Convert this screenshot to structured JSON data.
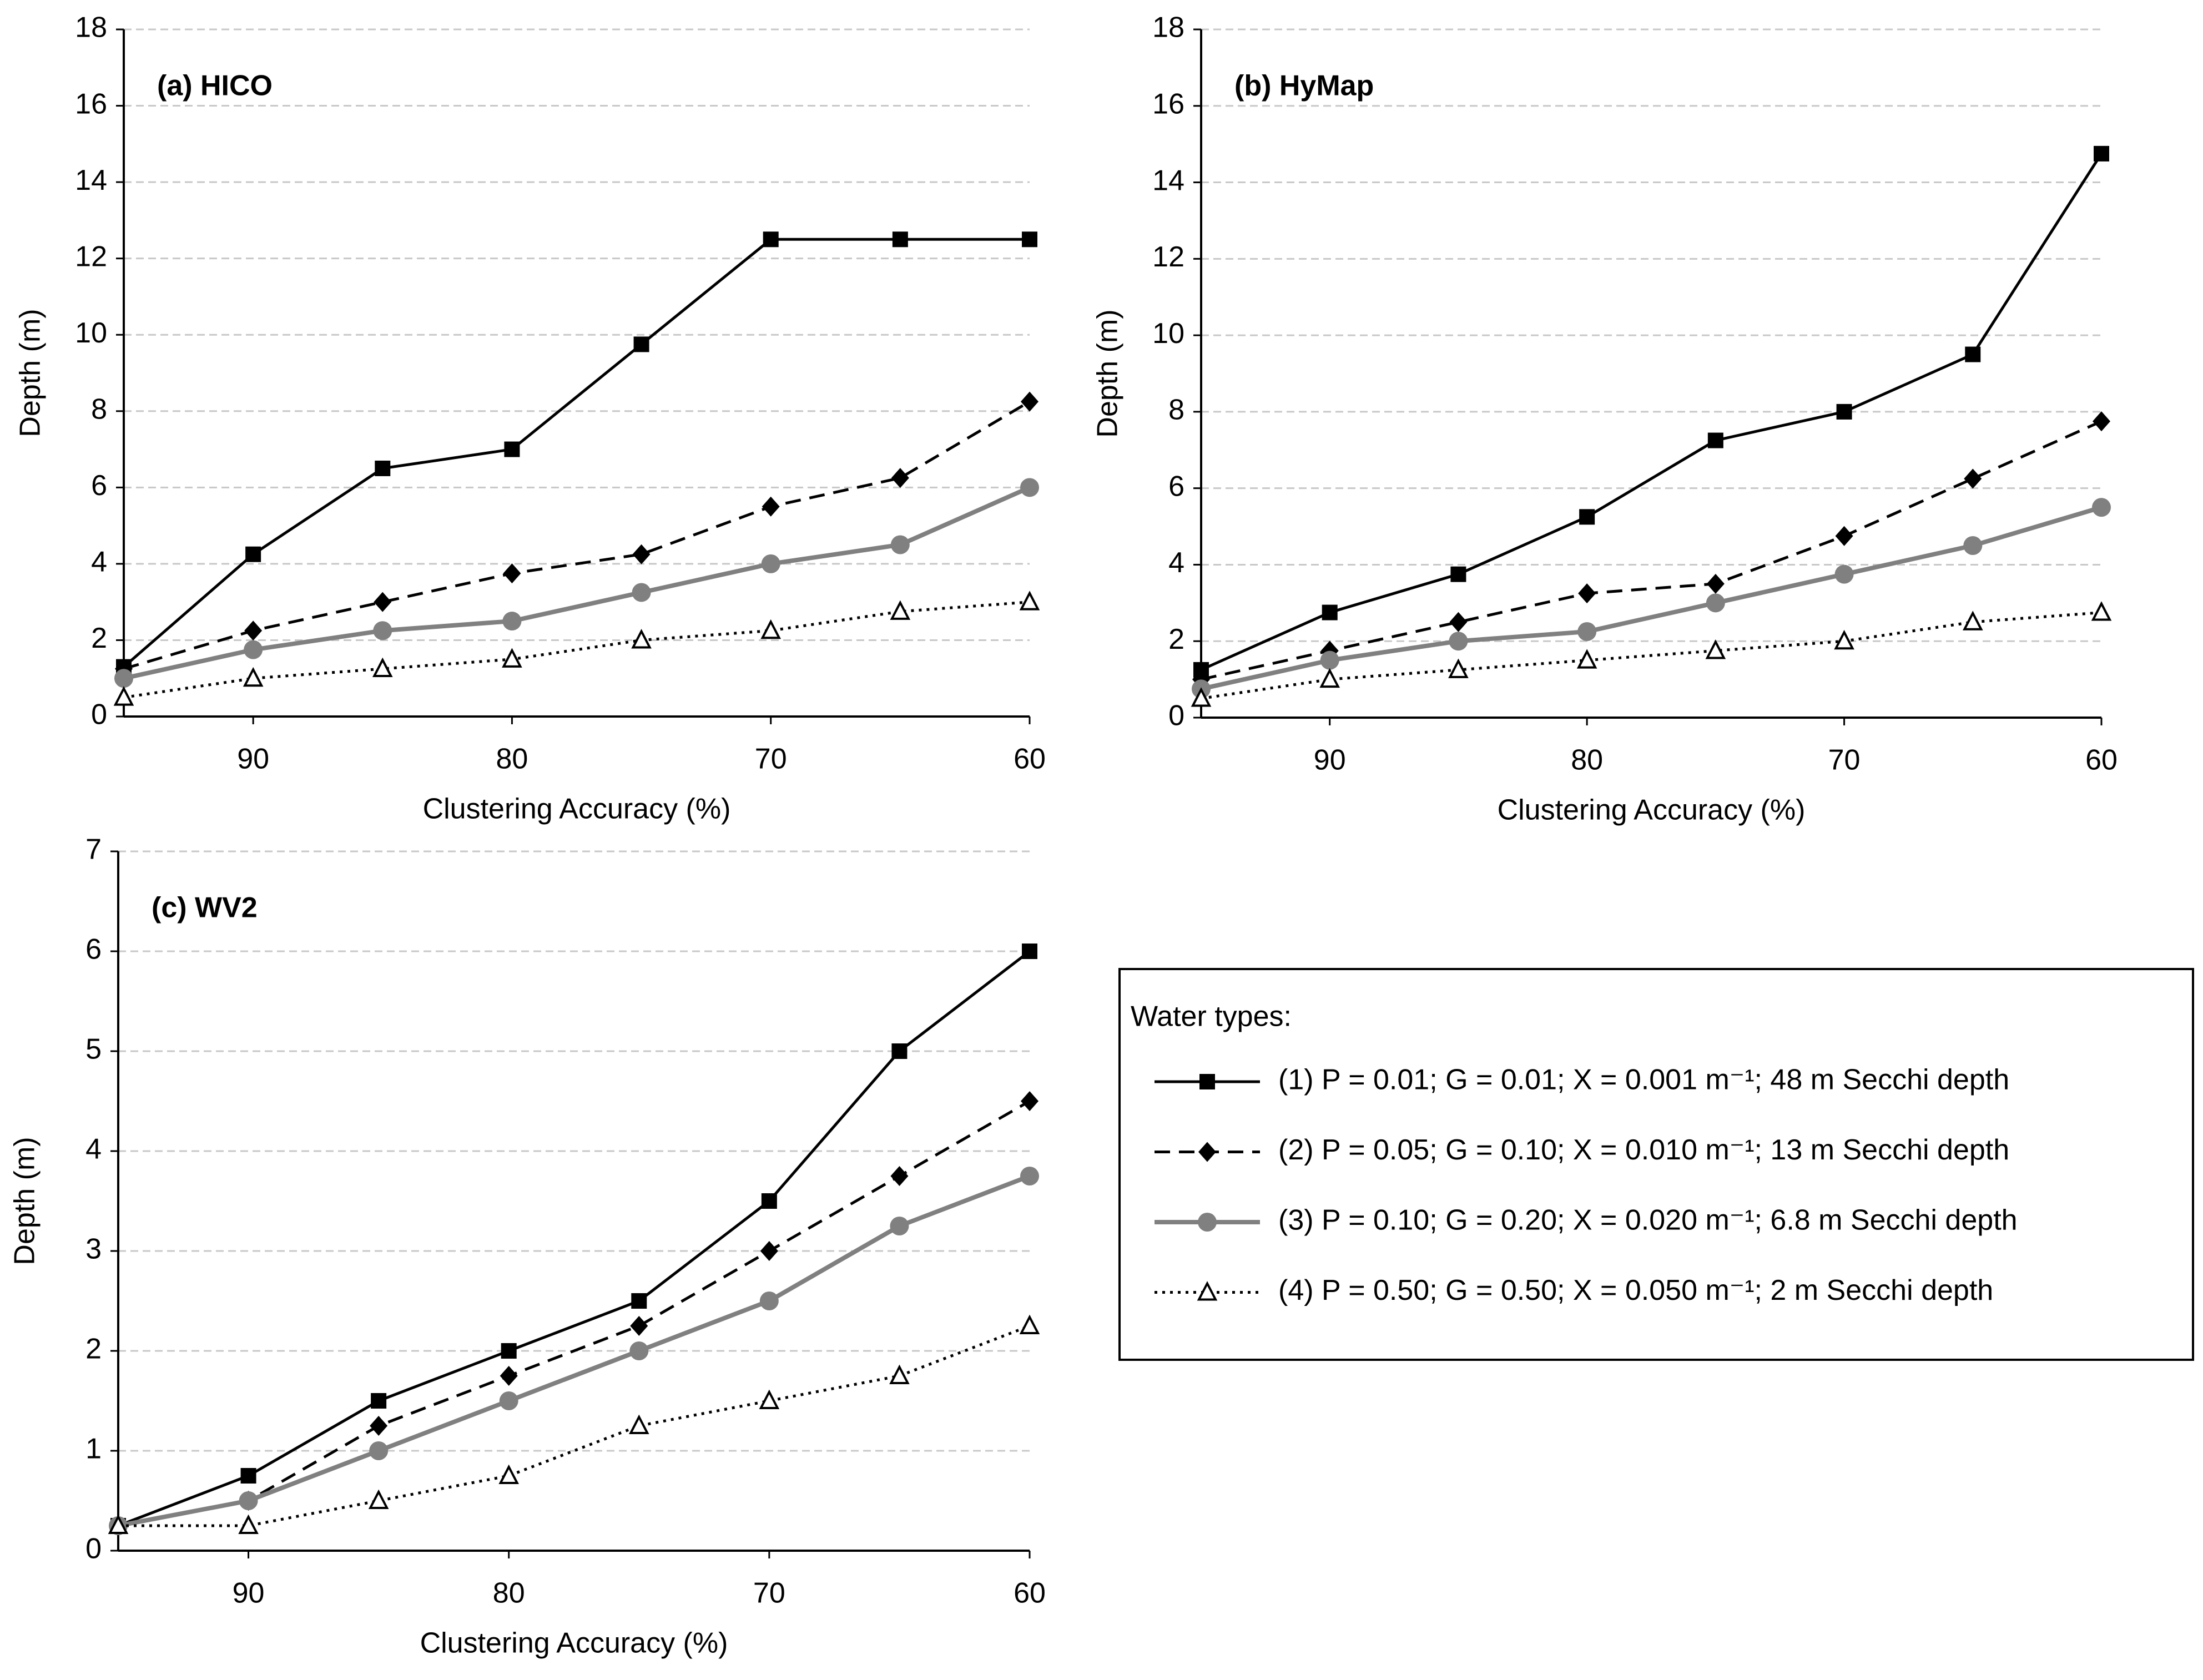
{
  "chart_data": [
    {
      "type": "line",
      "label": "(a) HICO",
      "xlabel": "Clustering Accuracy  (%)",
      "ylabel": "Depth (m)",
      "x": [
        95,
        90,
        85,
        80,
        75,
        70,
        65,
        60
      ],
      "xlim": [
        95,
        60
      ],
      "xticks": [
        90,
        80,
        70,
        60
      ],
      "ylim": [
        0,
        18
      ],
      "yticks": [
        0,
        2,
        4,
        6,
        8,
        10,
        12,
        14,
        16,
        18
      ],
      "grid": true,
      "legend": {
        "title": "Water types:"
      },
      "series": [
        {
          "name": "(1) P = 0.01; G = 0.01; X = 0.001 m⁻¹; 48 m Secchi depth",
          "color": "#000000",
          "dash": "solid",
          "marker": "square",
          "values": [
            1.3,
            4.25,
            6.5,
            7.0,
            9.75,
            12.5,
            12.5,
            12.5
          ]
        },
        {
          "name": "(2) P = 0.05; G = 0.10; X = 0.010 m⁻¹; 13 m Secchi depth",
          "color": "#000000",
          "dash": "dashed",
          "marker": "diamond",
          "values": [
            1.25,
            2.25,
            3.0,
            3.75,
            4.25,
            5.5,
            6.25,
            8.25
          ]
        },
        {
          "name": "(3) P = 0.10; G = 0.20; X = 0.020 m⁻¹; 6.8 m Secchi depth",
          "color": "#808080",
          "dash": "solid",
          "marker": "circle",
          "values": [
            1.0,
            1.75,
            2.25,
            2.5,
            3.25,
            4.0,
            4.5,
            6.0
          ]
        },
        {
          "name": "(4) P = 0.50; G = 0.50; X = 0.050 m⁻¹; 2 m Secchi depth",
          "color": "#000000",
          "dash": "dotted",
          "marker": "triangle",
          "values": [
            0.5,
            1.0,
            1.25,
            1.5,
            2.0,
            2.25,
            2.75,
            3.0
          ]
        }
      ]
    },
    {
      "type": "line",
      "label": "(b) HyMap",
      "xlabel": "Clustering Accuracy  (%)",
      "ylabel": "Depth (m)",
      "x": [
        95,
        90,
        85,
        80,
        75,
        70,
        65,
        60
      ],
      "xlim": [
        95,
        60
      ],
      "xticks": [
        90,
        80,
        70,
        60
      ],
      "ylim": [
        0,
        18
      ],
      "yticks": [
        0,
        2,
        4,
        6,
        8,
        10,
        12,
        14,
        16,
        18
      ],
      "grid": true,
      "series": [
        {
          "color": "#000000",
          "dash": "solid",
          "marker": "square",
          "values": [
            1.25,
            2.75,
            3.75,
            5.25,
            7.25,
            8.0,
            9.5,
            14.75
          ]
        },
        {
          "color": "#000000",
          "dash": "dashed",
          "marker": "diamond",
          "values": [
            1.0,
            1.75,
            2.5,
            3.25,
            3.5,
            4.75,
            6.25,
            7.75
          ]
        },
        {
          "color": "#808080",
          "dash": "solid",
          "marker": "circle",
          "values": [
            0.75,
            1.5,
            2.0,
            2.25,
            3.0,
            3.75,
            4.5,
            5.5
          ]
        },
        {
          "color": "#000000",
          "dash": "dotted",
          "marker": "triangle",
          "values": [
            0.5,
            1.0,
            1.25,
            1.5,
            1.75,
            2.0,
            2.5,
            2.75
          ]
        }
      ]
    },
    {
      "type": "line",
      "label": "(c) WV2",
      "xlabel": "Clustering Accuracy  (%)",
      "ylabel": "Depth (m)",
      "x": [
        95,
        90,
        85,
        80,
        75,
        70,
        65,
        60
      ],
      "xlim": [
        95,
        60
      ],
      "xticks": [
        90,
        80,
        70,
        60
      ],
      "ylim": [
        0,
        7
      ],
      "yticks": [
        0,
        1,
        2,
        3,
        4,
        5,
        6,
        7
      ],
      "grid": true,
      "series": [
        {
          "color": "#000000",
          "dash": "solid",
          "marker": "square",
          "values": [
            0.25,
            0.75,
            1.5,
            2.0,
            2.5,
            3.5,
            5.0,
            6.0
          ]
        },
        {
          "color": "#000000",
          "dash": "dashed",
          "marker": "diamond",
          "values": [
            0.25,
            0.5,
            1.25,
            1.75,
            2.25,
            3.0,
            3.75,
            4.5
          ]
        },
        {
          "color": "#808080",
          "dash": "solid",
          "marker": "circle",
          "values": [
            0.25,
            0.5,
            1.0,
            1.5,
            2.0,
            2.5,
            3.25,
            3.75
          ]
        },
        {
          "color": "#000000",
          "dash": "dotted",
          "marker": "triangle",
          "values": [
            0.25,
            0.25,
            0.5,
            0.75,
            1.25,
            1.5,
            1.75,
            2.25
          ]
        }
      ]
    }
  ]
}
